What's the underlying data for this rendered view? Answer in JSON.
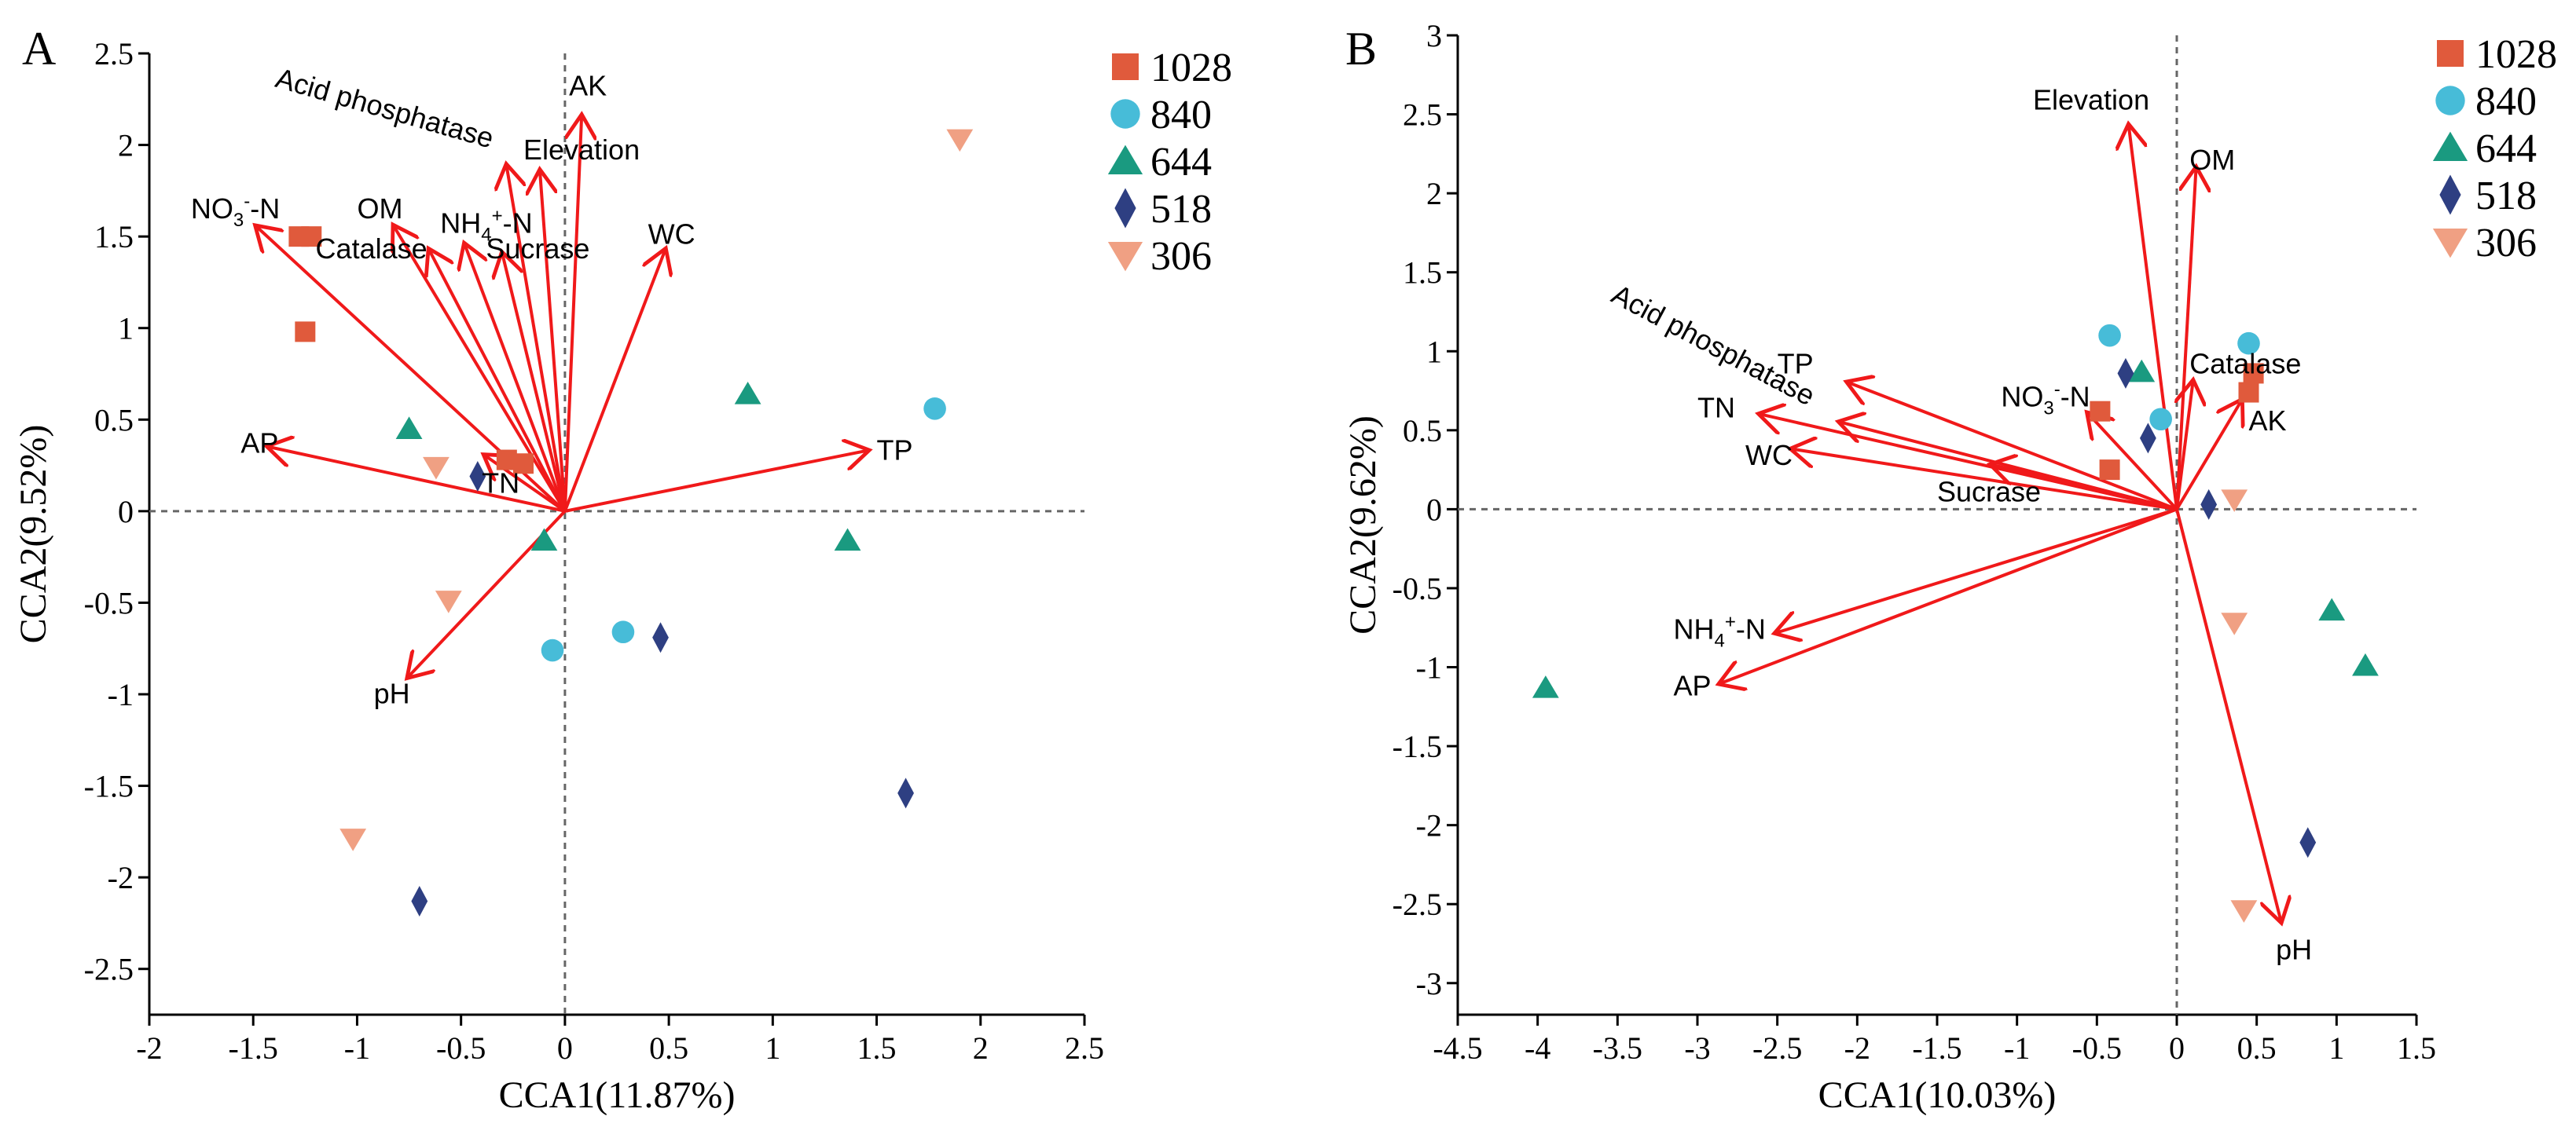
{
  "colors": {
    "s1028": "#e05a3c",
    "s840": "#47bcd8",
    "s644": "#1a9a80",
    "s518": "#2e3f82",
    "s306": "#f0a083",
    "arrow": "#f0191a"
  },
  "legend": [
    {
      "label": "1028",
      "key": "s1028",
      "shape": "square"
    },
    {
      "label": "840",
      "key": "s840",
      "shape": "circle"
    },
    {
      "label": "644",
      "key": "s644",
      "shape": "triangle"
    },
    {
      "label": "518",
      "key": "s518",
      "shape": "diamond"
    },
    {
      "label": "306",
      "key": "s306",
      "shape": "invtriangle"
    }
  ],
  "chart_data": [
    {
      "type": "scatter",
      "panel": "A",
      "xlabel": "CCA1(11.87%)",
      "ylabel": "CCA2(9.52%)",
      "xlim": [
        -2,
        2.5
      ],
      "ylim": [
        -2.75,
        2.5
      ],
      "xticks": [
        "-2",
        "-1.5",
        "-1",
        "-0.5",
        "0",
        "0.5",
        "1",
        "1.5",
        "2",
        "2.5"
      ],
      "yticks": [
        "-2.5",
        "-2",
        "-1.5",
        "-1",
        "-0.5",
        "0",
        "0.5",
        "1",
        "1.5",
        "2",
        "2.5"
      ],
      "arrows": [
        {
          "name": "AK",
          "x": 0.08,
          "y": 2.15
        },
        {
          "name": "Acid phosphatase",
          "x": -0.28,
          "y": 1.88
        },
        {
          "name": "Elevation",
          "x": -0.12,
          "y": 1.85
        },
        {
          "name": "NO3-N",
          "x": -1.48,
          "y": 1.55
        },
        {
          "name": "OM",
          "x": -0.82,
          "y": 1.55
        },
        {
          "name": "Catalase",
          "x": -0.65,
          "y": 1.42
        },
        {
          "name": "NH4-N",
          "x": -0.48,
          "y": 1.45
        },
        {
          "name": "Sucrase",
          "x": -0.3,
          "y": 1.4
        },
        {
          "name": "WC",
          "x": 0.48,
          "y": 1.42
        },
        {
          "name": "AP",
          "x": -1.42,
          "y": 0.35
        },
        {
          "name": "TP",
          "x": 1.45,
          "y": 0.33
        },
        {
          "name": "TN",
          "x": -0.38,
          "y": 0.3
        },
        {
          "name": "pH",
          "x": -0.75,
          "y": -0.9
        }
      ],
      "labels": [
        {
          "id": "AK",
          "text": "AK",
          "x": 0.02,
          "y": 2.27,
          "anchor": "start"
        },
        {
          "id": "Acid phosphatase",
          "text": "Acid phosphatase",
          "x": -1.4,
          "y": 2.32,
          "anchor": "start",
          "rotate": 16
        },
        {
          "id": "Elevation",
          "text": "Elevation",
          "x": -0.2,
          "y": 1.92,
          "anchor": "start"
        },
        {
          "id": "NO3-N",
          "text": "NO3-N",
          "x": -1.8,
          "y": 1.6,
          "anchor": "start",
          "chem": true,
          "base": "NO",
          "sub": "3",
          "sup": "-",
          "tail": "-N"
        },
        {
          "id": "OM",
          "text": "OM",
          "x": -1.0,
          "y": 1.6,
          "anchor": "start"
        },
        {
          "id": "Catalase",
          "text": "Catalase",
          "x": -1.2,
          "y": 1.38,
          "anchor": "start"
        },
        {
          "id": "NH4-N",
          "text": "NH4+-N",
          "x": -0.6,
          "y": 1.52,
          "anchor": "start",
          "chem": true,
          "base": "NH",
          "sub": "4",
          "sup": "+",
          "tail": "-N"
        },
        {
          "id": "Sucrase",
          "text": "Sucrase",
          "x": -0.38,
          "y": 1.38,
          "anchor": "start"
        },
        {
          "id": "WC",
          "text": "WC",
          "x": 0.4,
          "y": 1.46,
          "anchor": "start"
        },
        {
          "id": "AP",
          "text": "AP",
          "x": -1.56,
          "y": 0.32,
          "anchor": "start"
        },
        {
          "id": "TP",
          "text": "TP",
          "x": 1.5,
          "y": 0.28,
          "anchor": "start"
        },
        {
          "id": "TN",
          "text": "TN",
          "x": -0.4,
          "y": 0.1,
          "anchor": "start"
        },
        {
          "id": "pH",
          "text": "pH",
          "x": -0.92,
          "y": -1.05,
          "anchor": "start"
        }
      ],
      "points": [
        {
          "series": "1028",
          "x": -1.28,
          "y": 1.5
        },
        {
          "series": "1028",
          "x": -1.22,
          "y": 1.5
        },
        {
          "series": "1028",
          "x": -1.25,
          "y": 0.98
        },
        {
          "series": "1028",
          "x": -0.28,
          "y": 0.28
        },
        {
          "series": "1028",
          "x": -0.2,
          "y": 0.26
        },
        {
          "series": "840",
          "x": 1.78,
          "y": 0.56
        },
        {
          "series": "840",
          "x": 0.28,
          "y": -0.66
        },
        {
          "series": "840",
          "x": -0.06,
          "y": -0.76
        },
        {
          "series": "644",
          "x": -0.75,
          "y": 0.45
        },
        {
          "series": "644",
          "x": 0.88,
          "y": 0.64
        },
        {
          "series": "644",
          "x": 1.36,
          "y": -0.16
        },
        {
          "series": "644",
          "x": -0.1,
          "y": -0.16
        },
        {
          "series": "518",
          "x": -0.42,
          "y": 0.19
        },
        {
          "series": "518",
          "x": 0.46,
          "y": -0.69
        },
        {
          "series": "518",
          "x": 1.64,
          "y": -1.54
        },
        {
          "series": "518",
          "x": -0.7,
          "y": -2.13
        },
        {
          "series": "306",
          "x": 1.9,
          "y": 2.03
        },
        {
          "series": "306",
          "x": -0.62,
          "y": 0.24
        },
        {
          "series": "306",
          "x": -0.56,
          "y": -0.49
        },
        {
          "series": "306",
          "x": -1.02,
          "y": -1.79
        }
      ]
    },
    {
      "type": "scatter",
      "panel": "B",
      "xlabel": "CCA1(10.03%)",
      "ylabel": "CCA2(9.62%)",
      "xlim": [
        -4.5,
        1.5
      ],
      "ylim": [
        -3.2,
        3
      ],
      "xticks": [
        "-4.5",
        "-4",
        "-3.5",
        "-3",
        "-2.5",
        "-2",
        "-1.5",
        "-1",
        "-0.5",
        "0",
        "0.5",
        "1",
        "1.5"
      ],
      "yticks": [
        "-3",
        "-2.5",
        "-2",
        "-1.5",
        "-1",
        "-0.5",
        "0",
        "0.5",
        "1",
        "1.5",
        "2",
        "2.5",
        "3"
      ],
      "arrows": [
        {
          "name": "Elevation",
          "x": -0.3,
          "y": 2.42
        },
        {
          "name": "OM",
          "x": 0.12,
          "y": 2.15
        },
        {
          "name": "TP",
          "x": -2.05,
          "y": 0.8
        },
        {
          "name": "Acid phosphatase",
          "x": -2.1,
          "y": 0.55
        },
        {
          "name": "TN",
          "x": -2.6,
          "y": 0.6
        },
        {
          "name": "WC",
          "x": -2.4,
          "y": 0.38
        },
        {
          "name": "Sucrase",
          "x": -1.15,
          "y": 0.28
        },
        {
          "name": "NO3-N",
          "x": -0.55,
          "y": 0.6
        },
        {
          "name": "Catalase",
          "x": 0.1,
          "y": 0.8
        },
        {
          "name": "AK",
          "x": 0.4,
          "y": 0.68
        },
        {
          "name": "NH4-N",
          "x": -2.5,
          "y": -0.78
        },
        {
          "name": "AP",
          "x": -2.85,
          "y": -1.1
        },
        {
          "name": "pH",
          "x": 0.65,
          "y": -2.6
        }
      ],
      "labels": [
        {
          "id": "Elevation",
          "text": "Elevation",
          "x": -0.9,
          "y": 2.53,
          "anchor": "start"
        },
        {
          "id": "OM",
          "text": "OM",
          "x": 0.08,
          "y": 2.15,
          "anchor": "start"
        },
        {
          "id": "TP",
          "text": "TP",
          "x": -2.5,
          "y": 0.86,
          "anchor": "start"
        },
        {
          "id": "Acid phosphatase",
          "text": "Acid phosphatase",
          "x": -3.55,
          "y": 1.32,
          "anchor": "start",
          "rotate": 28
        },
        {
          "id": "TN",
          "text": "TN",
          "x": -3.0,
          "y": 0.58,
          "anchor": "start"
        },
        {
          "id": "WC",
          "text": "WC",
          "x": -2.7,
          "y": 0.28,
          "anchor": "start"
        },
        {
          "id": "Sucrase",
          "text": "Sucrase",
          "x": -1.5,
          "y": 0.05,
          "anchor": "start"
        },
        {
          "id": "NO3-N",
          "text": "NO3-N",
          "x": -1.1,
          "y": 0.65,
          "anchor": "start",
          "chem": true,
          "base": "NO",
          "sub": "3",
          "sup": "-",
          "tail": "-N"
        },
        {
          "id": "Catalase",
          "text": "Catalase",
          "x": 0.08,
          "y": 0.86,
          "anchor": "start"
        },
        {
          "id": "AK",
          "text": "AK",
          "x": 0.45,
          "y": 0.5,
          "anchor": "start"
        },
        {
          "id": "NH4-N",
          "text": "NH4+-N",
          "x": -3.15,
          "y": -0.82,
          "anchor": "start",
          "chem": true,
          "base": "NH",
          "sub": "4",
          "sup": "+",
          "tail": "-N"
        },
        {
          "id": "AP",
          "text": "AP",
          "x": -3.15,
          "y": -1.18,
          "anchor": "start"
        },
        {
          "id": "pH",
          "text": "pH",
          "x": 0.62,
          "y": -2.85,
          "anchor": "start"
        }
      ],
      "points": [
        {
          "series": "1028",
          "x": -0.48,
          "y": 0.62
        },
        {
          "series": "1028",
          "x": -0.42,
          "y": 0.25
        },
        {
          "series": "1028",
          "x": 0.45,
          "y": 0.74
        },
        {
          "series": "1028",
          "x": 0.48,
          "y": 0.86
        },
        {
          "series": "840",
          "x": -0.42,
          "y": 1.1
        },
        {
          "series": "840",
          "x": 0.45,
          "y": 1.05
        },
        {
          "series": "840",
          "x": -0.1,
          "y": 0.57
        },
        {
          "series": "644",
          "x": -0.22,
          "y": 0.87
        },
        {
          "series": "644",
          "x": 0.97,
          "y": -0.64
        },
        {
          "series": "644",
          "x": 1.18,
          "y": -0.99
        },
        {
          "series": "644",
          "x": -3.95,
          "y": -1.13
        },
        {
          "series": "518",
          "x": -0.32,
          "y": 0.86
        },
        {
          "series": "518",
          "x": -0.18,
          "y": 0.45
        },
        {
          "series": "518",
          "x": 0.2,
          "y": 0.03
        },
        {
          "series": "518",
          "x": 0.82,
          "y": -2.11
        },
        {
          "series": "306",
          "x": 0.36,
          "y": 0.06
        },
        {
          "series": "306",
          "x": 0.36,
          "y": -0.72
        },
        {
          "series": "306",
          "x": 0.42,
          "y": -2.54
        }
      ]
    }
  ]
}
